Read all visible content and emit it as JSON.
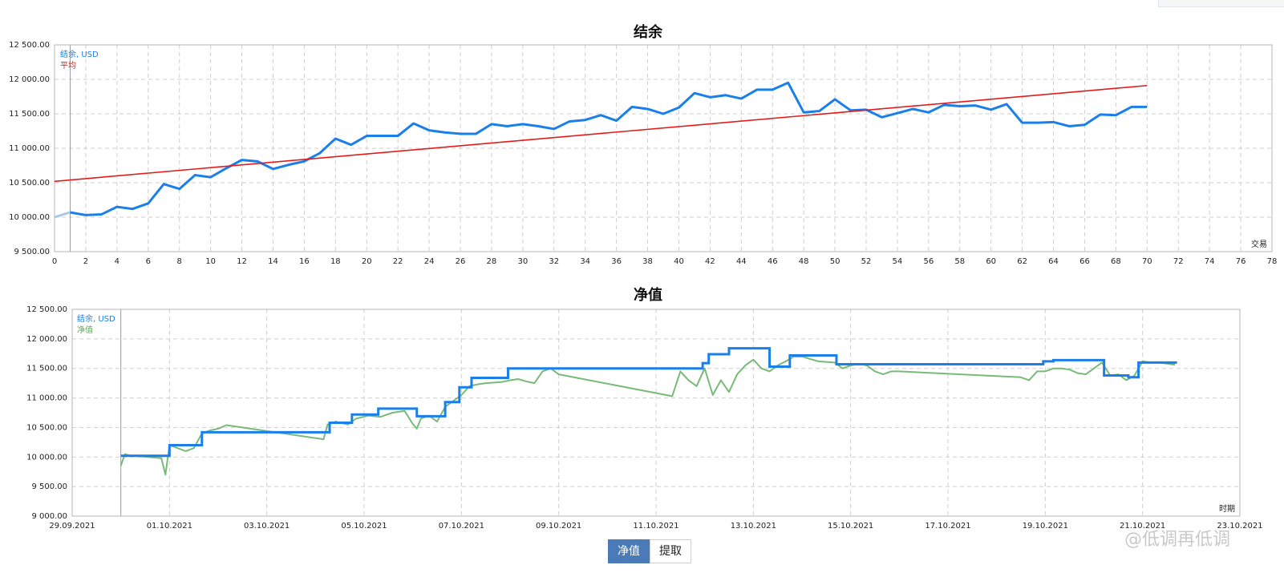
{
  "chart_data": [
    {
      "type": "line",
      "title": "结余",
      "xlabel": "交易",
      "ylabel": "",
      "xlim": [
        0,
        78
      ],
      "ylim": [
        9500,
        12500
      ],
      "x_ticks": [
        "0",
        "2",
        "4",
        "6",
        "8",
        "10",
        "12",
        "14",
        "16",
        "18",
        "20",
        "22",
        "24",
        "26",
        "28",
        "30",
        "32",
        "34",
        "36",
        "38",
        "40",
        "42",
        "44",
        "46",
        "48",
        "50",
        "52",
        "54",
        "56",
        "58",
        "60",
        "62",
        "64",
        "66",
        "68",
        "70",
        "72",
        "74",
        "76",
        "78"
      ],
      "y_ticks": [
        "9 500.00",
        "10 000.00",
        "10 500.00",
        "11 000.00",
        "11 500.00",
        "12 000.00",
        "12 500.00"
      ],
      "grid": true,
      "legend_position": "top-left",
      "series": [
        {
          "name": "结余, USD",
          "color": "#1a7fe8",
          "x": [
            0,
            1,
            2,
            3,
            4,
            5,
            6,
            7,
            8,
            9,
            10,
            11,
            12,
            13,
            14,
            15,
            16,
            17,
            18,
            19,
            20,
            21,
            22,
            23,
            24,
            25,
            26,
            27,
            28,
            29,
            30,
            31,
            32,
            33,
            34,
            35,
            36,
            37,
            38,
            39,
            40,
            41,
            42,
            43,
            44,
            45,
            46,
            47,
            48,
            49,
            50,
            51,
            52,
            53,
            54,
            55,
            56,
            57,
            58,
            59,
            60,
            61,
            62,
            63,
            64,
            65,
            66,
            67,
            68,
            69,
            70
          ],
          "values": [
            10000,
            10070,
            10030,
            10040,
            10150,
            10120,
            10200,
            10480,
            10410,
            10610,
            10580,
            10710,
            10830,
            10810,
            10700,
            10760,
            10810,
            10930,
            11140,
            11050,
            11180,
            11180,
            11180,
            11360,
            11260,
            11230,
            11210,
            11210,
            11350,
            11320,
            11350,
            11320,
            11280,
            11390,
            11410,
            11480,
            11400,
            11600,
            11570,
            11500,
            11590,
            11800,
            11740,
            11770,
            11720,
            11850,
            11850,
            11950,
            11520,
            11540,
            11710,
            11550,
            11560,
            11450,
            11510,
            11570,
            11520,
            11630,
            11610,
            11620,
            11560,
            11640,
            11370,
            11370,
            11380,
            11320,
            11340,
            11490,
            11480,
            11600,
            11600
          ]
        },
        {
          "name": "平均",
          "color": "#e41b1b",
          "x": [
            0,
            70
          ],
          "values": [
            10520,
            11910
          ]
        }
      ]
    },
    {
      "type": "line",
      "title": "净值",
      "xlabel": "时期",
      "ylabel": "",
      "xlim": [
        "29.09.2021",
        "23.10.2021"
      ],
      "ylim": [
        9000,
        12500
      ],
      "x_ticks": [
        "29.09.2021",
        "01.10.2021",
        "03.10.2021",
        "05.10.2021",
        "07.10.2021",
        "09.10.2021",
        "11.10.2021",
        "13.10.2021",
        "15.10.2021",
        "17.10.2021",
        "19.10.2021",
        "21.10.2021",
        "23.10.2021"
      ],
      "y_ticks": [
        "9 000.00",
        "9 500.00",
        "10 000.00",
        "10 500.00",
        "11 000.00",
        "11 500.00",
        "12 000.00",
        "12 500.00"
      ],
      "grid": true,
      "legend_position": "top-left",
      "series": [
        {
          "name": "结余, USD",
          "color": "#1a7fe8",
          "x": [
            "30.09.2021 00:00",
            "01.10.2021 00:00",
            "01.10.2021 00:00",
            "01.10.2021 16:00",
            "01.10.2021 16:00",
            "04.10.2021 07:00",
            "04.10.2021 07:00",
            "04.10.2021 18:00",
            "04.10.2021 18:00",
            "05.10.2021 07:00",
            "05.10.2021 07:00",
            "06.10.2021 02:00",
            "06.10.2021 02:00",
            "06.10.2021 16:00",
            "06.10.2021 16:00",
            "06.10.2021 23:00",
            "06.10.2021 23:00",
            "07.10.2021 05:00",
            "07.10.2021 05:00",
            "07.10.2021 14:00",
            "07.10.2021 14:00",
            "07.10.2021 23:00",
            "07.10.2021 23:00",
            "08.10.2021 20:00",
            "08.10.2021 20:00",
            "11.10.2021 23:00",
            "11.10.2021 23:00",
            "12.10.2021 02:00",
            "12.10.2021 02:00",
            "12.10.2021 12:00",
            "12.10.2021 12:00",
            "13.10.2021 08:00",
            "13.10.2021 08:00",
            "13.10.2021 18:00",
            "13.10.2021 18:00",
            "14.10.2021 17:00",
            "14.10.2021 17:00",
            "18.10.2021 23:00",
            "18.10.2021 23:00",
            "19.10.2021 04:00",
            "19.10.2021 04:00",
            "20.10.2021 05:00",
            "20.10.2021 05:00",
            "20.10.2021 17:00",
            "20.10.2021 17:00",
            "20.10.2021 22:00",
            "20.10.2021 22:00",
            "21.10.2021 17:00"
          ],
          "values": [
            10020,
            10020,
            10200,
            10200,
            10420,
            10420,
            10580,
            10580,
            10720,
            10720,
            10820,
            10820,
            10690,
            10690,
            10930,
            10930,
            11180,
            11180,
            11340,
            11340,
            11340,
            11340,
            11500,
            11500,
            11500,
            11500,
            11590,
            11590,
            11740,
            11740,
            11840,
            11840,
            11530,
            11530,
            11720,
            11720,
            11570,
            11570,
            11620,
            11620,
            11640,
            11640,
            11380,
            11380,
            11350,
            11350,
            11600,
            11600
          ]
        },
        {
          "name": "净值",
          "color": "#78bb78",
          "x": [
            "30.09.2021 00:00",
            "30.09.2021 02:00",
            "30.09.2021 04:00",
            "30.09.2021 20:00",
            "30.09.2021 22:00",
            "01.10.2021 00:00",
            "01.10.2021 04:00",
            "01.10.2021 08:00",
            "01.10.2021 12:00",
            "01.10.2021 16:00",
            "01.10.2021 20:00",
            "02.10.2021 00:00",
            "02.10.2021 04:00",
            "04.10.2021 04:00",
            "04.10.2021 06:00",
            "04.10.2021 10:00",
            "04.10.2021 16:00",
            "04.10.2021 20:00",
            "05.10.2021 02:00",
            "05.10.2021 08:00",
            "05.10.2021 14:00",
            "05.10.2021 20:00",
            "06.10.2021 00:00",
            "06.10.2021 02:00",
            "06.10.2021 04:00",
            "06.10.2021 08:00",
            "06.10.2021 12:00",
            "06.10.2021 16:00",
            "06.10.2021 20:00",
            "07.10.2021 00:00",
            "07.10.2021 04:00",
            "07.10.2021 08:00",
            "07.10.2021 12:00",
            "07.10.2021 16:00",
            "07.10.2021 20:00",
            "08.10.2021 00:00",
            "08.10.2021 04:00",
            "08.10.2021 08:00",
            "08.10.2021 12:00",
            "08.10.2021 16:00",
            "08.10.2021 20:00",
            "09.10.2021 00:00",
            "11.10.2021 08:00",
            "11.10.2021 12:00",
            "11.10.2021 16:00",
            "11.10.2021 20:00",
            "12.10.2021 00:00",
            "12.10.2021 04:00",
            "12.10.2021 08:00",
            "12.10.2021 12:00",
            "12.10.2021 16:00",
            "12.10.2021 20:00",
            "13.10.2021 00:00",
            "13.10.2021 04:00",
            "13.10.2021 08:00",
            "13.10.2021 12:00",
            "13.10.2021 16:00",
            "13.10.2021 20:00",
            "14.10.2021 00:00",
            "14.10.2021 08:00",
            "14.10.2021 16:00",
            "14.10.2021 20:00",
            "15.10.2021 00:00",
            "15.10.2021 04:00",
            "15.10.2021 08:00",
            "15.10.2021 12:00",
            "15.10.2021 16:00",
            "15.10.2021 20:00",
            "16.10.2021 00:00",
            "18.10.2021 12:00",
            "18.10.2021 16:00",
            "18.10.2021 20:00",
            "19.10.2021 00:00",
            "19.10.2021 04:00",
            "19.10.2021 08:00",
            "19.10.2021 12:00",
            "19.10.2021 16:00",
            "19.10.2021 20:00",
            "20.10.2021 00:00",
            "20.10.2021 04:00",
            "20.10.2021 08:00",
            "20.10.2021 12:00",
            "20.10.2021 16:00",
            "20.10.2021 20:00",
            "21.10.2021 00:00",
            "21.10.2021 04:00",
            "21.10.2021 08:00",
            "21.10.2021 12:00",
            "21.10.2021 16:00"
          ],
          "values": [
            9850,
            10050,
            10030,
            9980,
            9700,
            10200,
            10150,
            10100,
            10150,
            10400,
            10450,
            10480,
            10540,
            10300,
            10550,
            10600,
            10550,
            10650,
            10700,
            10680,
            10750,
            10780,
            10560,
            10480,
            10650,
            10700,
            10600,
            10850,
            10950,
            11050,
            11200,
            11230,
            11250,
            11260,
            11270,
            11300,
            11320,
            11280,
            11250,
            11450,
            11500,
            11400,
            11030,
            11450,
            11300,
            11200,
            11500,
            11050,
            11300,
            11100,
            11400,
            11550,
            11650,
            11500,
            11450,
            11550,
            11620,
            11700,
            11700,
            11620,
            11600,
            11500,
            11550,
            11580,
            11550,
            11450,
            11400,
            11450,
            11450,
            11350,
            11300,
            11450,
            11450,
            11500,
            11500,
            11480,
            11420,
            11400,
            11500,
            11600,
            11380,
            11400,
            11300,
            11380,
            11620,
            11600,
            11600,
            11580,
            11560
          ]
        }
      ]
    }
  ],
  "tabs": {
    "active": "净值",
    "inactive": "提取"
  },
  "watermark": "@低调再低调"
}
